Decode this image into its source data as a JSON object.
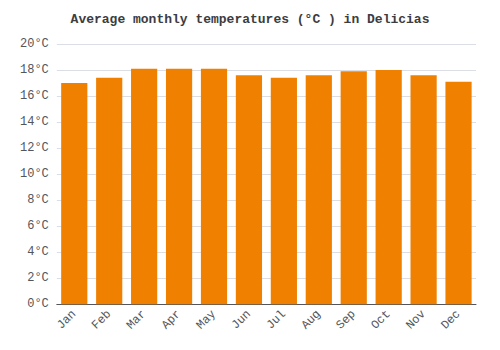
{
  "chart_data": {
    "type": "bar",
    "title": "Average monthly temperatures (°C ) in Delicias",
    "categories": [
      "Jan",
      "Feb",
      "Mar",
      "Apr",
      "May",
      "Jun",
      "Jul",
      "Aug",
      "Sep",
      "Oct",
      "Nov",
      "Dec"
    ],
    "values": [
      17.0,
      17.4,
      18.1,
      18.1,
      18.1,
      17.6,
      17.4,
      17.6,
      17.9,
      18.0,
      17.6,
      17.1
    ],
    "color": "#F08000",
    "ylim": [
      0,
      20
    ],
    "yticks": [
      {
        "value": 0,
        "label": "0°C"
      },
      {
        "value": 2,
        "label": "2°C"
      },
      {
        "value": 4,
        "label": "4°C"
      },
      {
        "value": 6,
        "label": "6°C"
      },
      {
        "value": 8,
        "label": "8°C"
      },
      {
        "value": 10,
        "label": "10°C"
      },
      {
        "value": 12,
        "label": "12°C"
      },
      {
        "value": 14,
        "label": "14°C"
      },
      {
        "value": 16,
        "label": "16°C"
      },
      {
        "value": 18,
        "label": "18°C"
      },
      {
        "value": 20,
        "label": "20°C"
      }
    ],
    "grid": true
  }
}
